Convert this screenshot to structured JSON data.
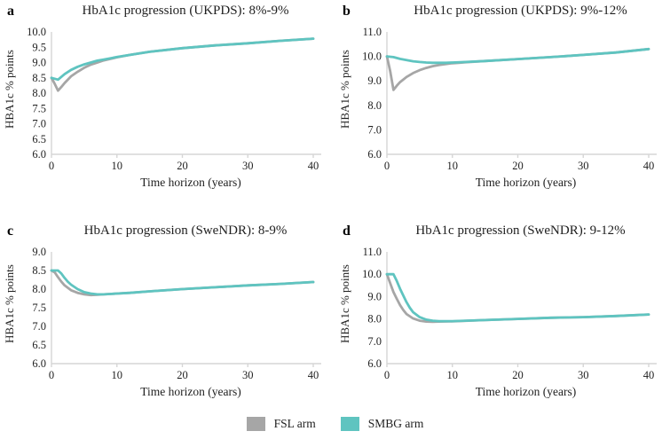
{
  "colors": {
    "fsl": "#a6a6a6",
    "smbg": "#5fc4c0",
    "axis": "#d6d6d6",
    "text": "#1f1f1f"
  },
  "legend": {
    "items": [
      {
        "label": "FSL arm",
        "swatch": "fsl"
      },
      {
        "label": "SMBG arm",
        "swatch": "smbg"
      }
    ]
  },
  "chart_data": [
    {
      "type": "line",
      "letter": "a",
      "title": "HbA1c progression (UKPDS): 8%-9%",
      "xlabel": "Time horizon (years)",
      "ylabel": "HBA1c % points",
      "ylim": [
        6.0,
        10.0
      ],
      "ytick_step": 0.5,
      "xticks": [
        0,
        10,
        20,
        30,
        40
      ],
      "grid": false,
      "series": [
        {
          "name": "FSL arm",
          "color": "#a6a6a6",
          "x": [
            0,
            0.5,
            1,
            1.5,
            2,
            3,
            4,
            5,
            6,
            7,
            8,
            9,
            10,
            12,
            15,
            20,
            25,
            30,
            35,
            40
          ],
          "y": [
            8.5,
            8.3,
            8.08,
            8.2,
            8.33,
            8.55,
            8.7,
            8.83,
            8.93,
            9.0,
            9.07,
            9.12,
            9.17,
            9.25,
            9.35,
            9.47,
            9.56,
            9.63,
            9.71,
            9.78
          ]
        },
        {
          "name": "SMBG arm",
          "color": "#5fc4c0",
          "x": [
            0,
            0.5,
            1,
            2,
            3,
            4,
            5,
            6,
            7,
            8,
            9,
            10,
            12,
            15,
            20,
            25,
            30,
            35,
            40
          ],
          "y": [
            8.5,
            8.47,
            8.44,
            8.62,
            8.76,
            8.86,
            8.94,
            9.0,
            9.06,
            9.1,
            9.14,
            9.18,
            9.25,
            9.35,
            9.47,
            9.56,
            9.63,
            9.71,
            9.78
          ]
        }
      ]
    },
    {
      "type": "line",
      "letter": "b",
      "title": "HbA1c progression (UKPDS): 9%-12%",
      "xlabel": "Time horizon (years)",
      "ylabel": "HBA1c % points",
      "ylim": [
        6.0,
        11.0
      ],
      "ytick_step": 1.0,
      "xticks": [
        0,
        10,
        20,
        30,
        40
      ],
      "grid": false,
      "series": [
        {
          "name": "FSL arm",
          "color": "#a6a6a6",
          "x": [
            0,
            0.5,
            1,
            1.5,
            2,
            3,
            4,
            5,
            6,
            7,
            8,
            9,
            10,
            11,
            12,
            15,
            20,
            25,
            30,
            35,
            40
          ],
          "y": [
            10.0,
            9.4,
            8.63,
            8.8,
            8.95,
            9.16,
            9.32,
            9.44,
            9.53,
            9.6,
            9.65,
            9.69,
            9.72,
            9.74,
            9.76,
            9.81,
            9.89,
            9.97,
            10.06,
            10.16,
            10.3
          ]
        },
        {
          "name": "SMBG arm",
          "color": "#5fc4c0",
          "x": [
            0,
            1,
            2,
            3,
            4,
            5,
            6,
            7,
            8,
            9,
            10,
            12,
            15,
            20,
            25,
            30,
            35,
            40
          ],
          "y": [
            10.0,
            9.97,
            9.9,
            9.85,
            9.8,
            9.77,
            9.75,
            9.74,
            9.74,
            9.74,
            9.75,
            9.77,
            9.81,
            9.89,
            9.97,
            10.06,
            10.16,
            10.3
          ]
        }
      ]
    },
    {
      "type": "line",
      "letter": "c",
      "title": "HbA1c progression (SweNDR): 8-9%",
      "xlabel": "Time horizon (years)",
      "ylabel": "HBA1c % points",
      "ylim": [
        6.0,
        9.0
      ],
      "ytick_step": 0.5,
      "xticks": [
        0,
        10,
        20,
        30,
        40
      ],
      "grid": false,
      "series": [
        {
          "name": "FSL arm",
          "color": "#a6a6a6",
          "x": [
            0,
            0.5,
            1,
            1.5,
            2,
            3,
            4,
            5,
            6,
            7,
            8,
            10,
            12,
            15,
            20,
            25,
            30,
            35,
            40
          ],
          "y": [
            8.5,
            8.45,
            8.32,
            8.2,
            8.1,
            7.97,
            7.9,
            7.86,
            7.84,
            7.85,
            7.86,
            7.88,
            7.9,
            7.94,
            8.0,
            8.05,
            8.1,
            8.14,
            8.19
          ]
        },
        {
          "name": "SMBG arm",
          "color": "#5fc4c0",
          "x": [
            0,
            1,
            1.5,
            2,
            2.5,
            3,
            4,
            5,
            6,
            7,
            8,
            10,
            12,
            15,
            20,
            25,
            30,
            35,
            40
          ],
          "y": [
            8.5,
            8.5,
            8.42,
            8.3,
            8.2,
            8.12,
            8.0,
            7.92,
            7.88,
            7.86,
            7.86,
            7.88,
            7.9,
            7.94,
            8.0,
            8.05,
            8.1,
            8.14,
            8.19
          ]
        }
      ]
    },
    {
      "type": "line",
      "letter": "d",
      "title": "HbA1c progression (SweNDR): 9-12%",
      "xlabel": "Time horizon (years)",
      "ylabel": "HBA1c % points",
      "ylim": [
        6.0,
        11.0
      ],
      "ytick_step": 1.0,
      "xticks": [
        0,
        10,
        20,
        30,
        40
      ],
      "grid": false,
      "series": [
        {
          "name": "FSL arm",
          "color": "#a6a6a6",
          "x": [
            0,
            0.5,
            1,
            1.5,
            2,
            2.5,
            3,
            4,
            5,
            6,
            7,
            8,
            10,
            15,
            20,
            25,
            30,
            35,
            40
          ],
          "y": [
            10.0,
            9.6,
            9.2,
            8.9,
            8.62,
            8.4,
            8.22,
            8.02,
            7.92,
            7.88,
            7.87,
            7.88,
            7.89,
            7.95,
            8.0,
            8.05,
            8.08,
            8.13,
            8.2
          ]
        },
        {
          "name": "SMBG arm",
          "color": "#5fc4c0",
          "x": [
            0,
            1,
            1.5,
            2,
            2.5,
            3,
            3.5,
            4,
            5,
            6,
            7,
            8,
            10,
            15,
            20,
            25,
            30,
            35,
            40
          ],
          "y": [
            10.0,
            10.0,
            9.7,
            9.35,
            9.05,
            8.75,
            8.5,
            8.3,
            8.08,
            7.97,
            7.92,
            7.9,
            7.9,
            7.95,
            8.0,
            8.05,
            8.08,
            8.13,
            8.2
          ]
        }
      ]
    }
  ]
}
